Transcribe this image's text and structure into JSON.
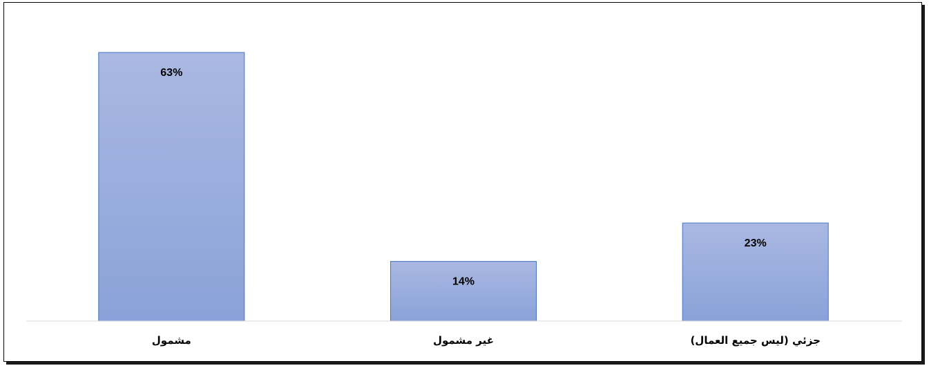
{
  "chart_data": {
    "type": "bar",
    "categories": [
      "مشمول",
      "غير مشمول",
      "جزئي (ليس جميع العمال)"
    ],
    "values": [
      63,
      14,
      23
    ],
    "data_labels": [
      "63%",
      "14%",
      "23%"
    ],
    "value_unit": "%",
    "title": "",
    "xlabel": "",
    "ylabel": "",
    "ylim": [
      0,
      70
    ],
    "grid": false,
    "legend": "none",
    "bar_color_top": "#aab8e2",
    "bar_color_bottom": "#8aa2d9",
    "bar_border_color": "#4472c4",
    "axis_color": "#d9d9d9"
  }
}
